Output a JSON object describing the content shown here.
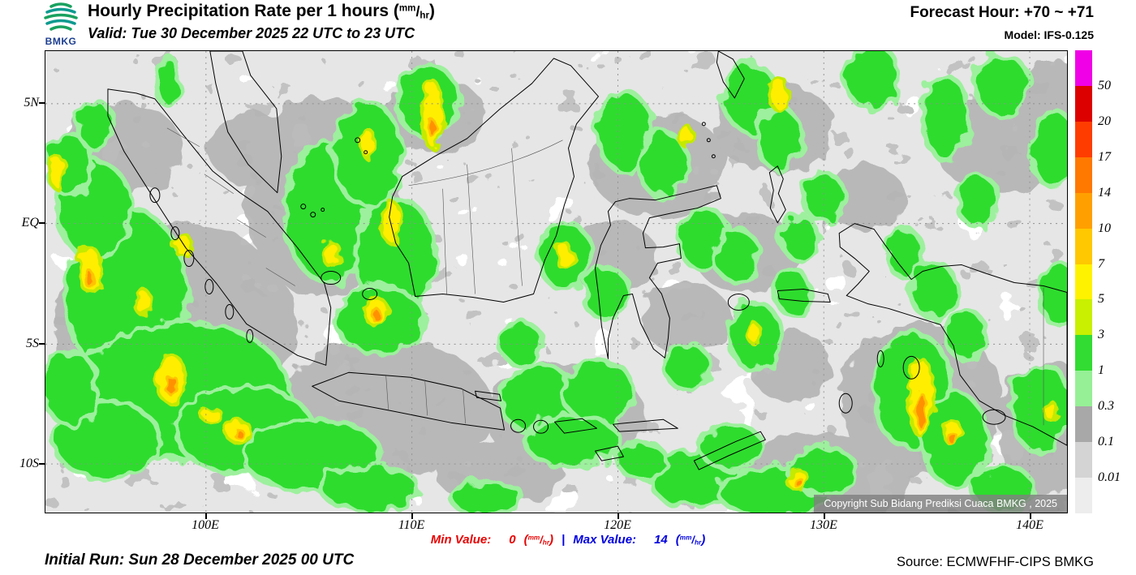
{
  "header": {
    "logo_text": "BMKG",
    "title_main": "Hourly Precipitation Rate per 1 hours (",
    "title_close": ")",
    "valid_line": "Valid: Tue 30 December 2025 22 UTC to 23 UTC",
    "forecast_hour": "Forecast Hour: +70 ~ +71",
    "model": "Model: IFS-0.125"
  },
  "units": {
    "top": "mm",
    "slash": "/",
    "bottom": "hr",
    "open": "(",
    "close": ")"
  },
  "map": {
    "lat_labels": [
      "5N",
      "EQ",
      "5S",
      "10S"
    ],
    "lon_labels": [
      "100E",
      "110E",
      "120E",
      "130E",
      "140E"
    ],
    "copyright": "Copyright Sub Bidang Prediksi Cuaca BMKG , 2025"
  },
  "legend": {
    "values": [
      "50",
      "20",
      "17",
      "14",
      "10",
      "7",
      "5",
      "3",
      "1",
      "0.3",
      "0.1",
      "0.01"
    ],
    "colors": [
      "#f000e6",
      "#dc0000",
      "#ff3c00",
      "#ff7800",
      "#ffa000",
      "#ffc800",
      "#fff200",
      "#c8f000",
      "#32dc32",
      "#96f096",
      "#a8a8a8",
      "#d4d4d4",
      "#ededed"
    ]
  },
  "footer": {
    "min_label": "Min Value:",
    "min_value": "0",
    "separator": "|",
    "max_label": "Max Value:",
    "max_value": "14",
    "initial_run": "Initial Run: Sun 28 December 2025 00 UTC",
    "source": "Source: ECMWFHF-CIPS BMKG"
  },
  "colors": {
    "min": "#e80000",
    "max": "#0000e0"
  }
}
